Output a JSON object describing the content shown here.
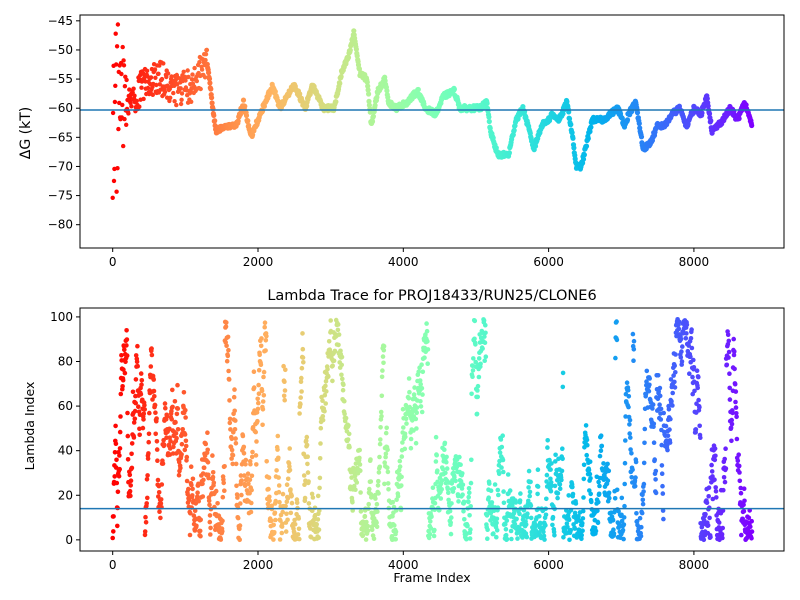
{
  "chart_data": [
    {
      "type": "scatter",
      "title": "",
      "xlabel": "",
      "ylabel": "ΔG (kT)",
      "xlim": [
        -450,
        9240
      ],
      "ylim": [
        -84,
        -44
      ],
      "xticks": [
        0,
        2000,
        4000,
        6000,
        8000
      ],
      "yticks": [
        -80,
        -75,
        -70,
        -65,
        -60,
        -55,
        -50,
        -45
      ],
      "xtick_labels": [
        "0",
        "2000",
        "4000",
        "6000",
        "8000"
      ],
      "ytick_labels": [
        "−80",
        "−75",
        "−70",
        "−65",
        "−60",
        "−55",
        "−50",
        "−45"
      ],
      "colormap": "rainbow (red at frame 0 → violet at last frame)",
      "hline": {
        "y": -60.3,
        "color": "#1f77b4"
      },
      "n_frames": 8800,
      "trend_keypoints": [
        [
          0,
          -60
        ],
        [
          150,
          -58
        ],
        [
          300,
          -58
        ],
        [
          500,
          -55
        ],
        [
          700,
          -55
        ],
        [
          900,
          -57
        ],
        [
          1100,
          -56
        ],
        [
          1300,
          -52
        ],
        [
          1420,
          -64
        ],
        [
          1550,
          -63
        ],
        [
          1700,
          -63
        ],
        [
          1800,
          -59
        ],
        [
          1900,
          -65
        ],
        [
          2000,
          -62
        ],
        [
          2100,
          -59
        ],
        [
          2200,
          -56
        ],
        [
          2300,
          -60
        ],
        [
          2400,
          -58
        ],
        [
          2500,
          -56
        ],
        [
          2650,
          -60
        ],
        [
          2750,
          -56
        ],
        [
          2900,
          -60
        ],
        [
          3050,
          -60
        ],
        [
          3150,
          -54
        ],
        [
          3250,
          -51
        ],
        [
          3320,
          -47
        ],
        [
          3400,
          -54
        ],
        [
          3500,
          -55
        ],
        [
          3560,
          -63
        ],
        [
          3650,
          -57
        ],
        [
          3750,
          -55
        ],
        [
          3800,
          -59
        ],
        [
          3900,
          -60
        ],
        [
          4050,
          -59
        ],
        [
          4200,
          -57
        ],
        [
          4300,
          -60
        ],
        [
          4450,
          -61
        ],
        [
          4550,
          -58
        ],
        [
          4700,
          -57
        ],
        [
          4780,
          -60
        ],
        [
          4900,
          -60
        ],
        [
          5050,
          -60
        ],
        [
          5150,
          -59
        ],
        [
          5200,
          -64
        ],
        [
          5300,
          -68
        ],
        [
          5450,
          -68
        ],
        [
          5550,
          -62
        ],
        [
          5650,
          -60
        ],
        [
          5800,
          -67
        ],
        [
          5900,
          -63
        ],
        [
          6000,
          -62
        ],
        [
          6050,
          -61
        ],
        [
          6150,
          -62
        ],
        [
          6250,
          -59
        ],
        [
          6320,
          -64
        ],
        [
          6380,
          -70
        ],
        [
          6450,
          -70
        ],
        [
          6600,
          -62
        ],
        [
          6750,
          -62
        ],
        [
          6850,
          -61
        ],
        [
          6950,
          -60
        ],
        [
          7050,
          -63
        ],
        [
          7100,
          -61
        ],
        [
          7200,
          -59
        ],
        [
          7250,
          -63
        ],
        [
          7300,
          -67
        ],
        [
          7400,
          -66
        ],
        [
          7500,
          -63
        ],
        [
          7600,
          -63
        ],
        [
          7700,
          -61
        ],
        [
          7800,
          -60
        ],
        [
          7900,
          -63
        ],
        [
          8000,
          -60
        ],
        [
          8100,
          -61
        ],
        [
          8180,
          -58
        ],
        [
          8250,
          -64
        ],
        [
          8400,
          -62
        ],
        [
          8500,
          -60
        ],
        [
          8600,
          -62
        ],
        [
          8700,
          -59
        ],
        [
          8800,
          -63
        ]
      ],
      "early_scatter": {
        "x_max": 300,
        "y_range": [
          -82,
          -45
        ]
      }
    },
    {
      "type": "scatter",
      "title": "Lambda Trace for PROJ18433/RUN25/CLONE6",
      "xlabel": "Frame Index",
      "ylabel": "Lambda Index",
      "xlim": [
        -450,
        9240
      ],
      "ylim": [
        -5,
        104
      ],
      "xticks": [
        0,
        2000,
        4000,
        6000,
        8000
      ],
      "yticks": [
        0,
        20,
        40,
        60,
        80,
        100
      ],
      "xtick_labels": [
        "0",
        "2000",
        "4000",
        "6000",
        "8000"
      ],
      "ytick_labels": [
        "0",
        "20",
        "40",
        "60",
        "80",
        "100"
      ],
      "colormap": "rainbow (red at frame 0 → violet at last frame)",
      "hline": {
        "y": 14,
        "color": "#1f77b4"
      },
      "n_frames": 8800,
      "value_range": [
        0,
        99
      ]
    }
  ]
}
